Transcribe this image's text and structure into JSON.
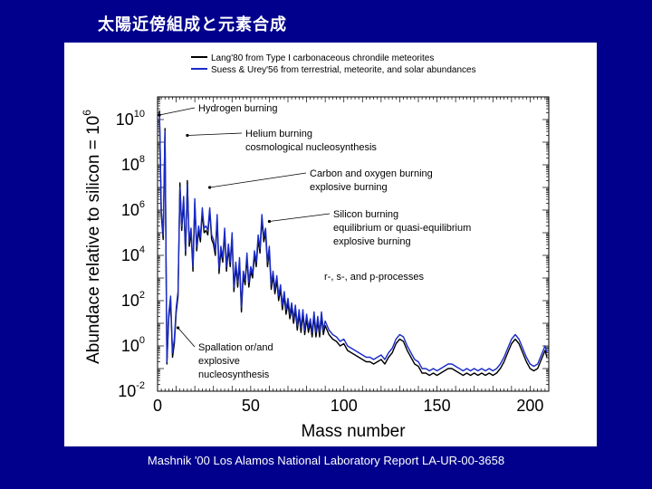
{
  "slide": {
    "title": "太陽近傍組成と元素合成",
    "footer": "Mashnik '00 Los Alamos National Laboratory Report LA-UR-00-3658",
    "background_color": "#00008c"
  },
  "chart_data": {
    "type": "line",
    "xlabel": "Mass number",
    "ylabel": "Abundace relative to silicon = 10",
    "ylabel_superscript": "6",
    "xlim": [
      0,
      210
    ],
    "ylim_log10": [
      -2,
      11
    ],
    "yscale": "log",
    "xticks": [
      {
        "value": 0,
        "label": "0"
      },
      {
        "value": 50,
        "label": "50"
      },
      {
        "value": 100,
        "label": "100"
      },
      {
        "value": 150,
        "label": "150"
      },
      {
        "value": 200,
        "label": "200"
      }
    ],
    "yticks": [
      {
        "value": -2,
        "base": "10",
        "exp": "-2"
      },
      {
        "value": 0,
        "base": "10",
        "exp": "0"
      },
      {
        "value": 2,
        "base": "10",
        "exp": "2"
      },
      {
        "value": 4,
        "base": "10",
        "exp": "4"
      },
      {
        "value": 6,
        "base": "10",
        "exp": "6"
      },
      {
        "value": 8,
        "base": "10",
        "exp": "8"
      },
      {
        "value": 10,
        "base": "10",
        "exp": "10"
      }
    ],
    "legend_position": "top",
    "series": [
      {
        "name": "Lang'80 from Type I carbonaceous chrondile meteorites",
        "color": "#000000",
        "points": [
          [
            1,
            10.4
          ],
          [
            2,
            5.8
          ],
          [
            3,
            4.7
          ],
          [
            4,
            9.6
          ],
          [
            5,
            -0.8
          ],
          [
            6,
            1.2
          ],
          [
            7,
            2.0
          ],
          [
            8,
            -0.5
          ],
          [
            9,
            0.1
          ],
          [
            10,
            1.5
          ],
          [
            11,
            2.2
          ],
          [
            12,
            7.2
          ],
          [
            13,
            5.1
          ],
          [
            14,
            6.4
          ],
          [
            15,
            4.0
          ],
          [
            16,
            7.3
          ],
          [
            17,
            4.4
          ],
          [
            18,
            5.0
          ],
          [
            19,
            3.3
          ],
          [
            20,
            6.3
          ],
          [
            21,
            4.2
          ],
          [
            22,
            5.1
          ],
          [
            23,
            4.6
          ],
          [
            24,
            5.9
          ],
          [
            25,
            5.0
          ],
          [
            26,
            5.1
          ],
          [
            27,
            4.9
          ],
          [
            28,
            6.0
          ],
          [
            29,
            4.7
          ],
          [
            30,
            4.5
          ],
          [
            31,
            4.0
          ],
          [
            32,
            5.6
          ],
          [
            33,
            3.2
          ],
          [
            34,
            4.2
          ],
          [
            35,
            3.7
          ],
          [
            36,
            5.0
          ],
          [
            37,
            3.3
          ],
          [
            38,
            4.3
          ],
          [
            39,
            3.5
          ],
          [
            40,
            4.8
          ],
          [
            41,
            2.4
          ],
          [
            42,
            3.5
          ],
          [
            43,
            2.6
          ],
          [
            44,
            3.7
          ],
          [
            45,
            1.5
          ],
          [
            46,
            3.1
          ],
          [
            47,
            2.7
          ],
          [
            48,
            3.9
          ],
          [
            49,
            2.6
          ],
          [
            50,
            3.3
          ],
          [
            51,
            3.0
          ],
          [
            52,
            4.0
          ],
          [
            53,
            3.5
          ],
          [
            54,
            4.7
          ],
          [
            55,
            4.1
          ],
          [
            56,
            5.6
          ],
          [
            57,
            4.6
          ],
          [
            58,
            5.0
          ],
          [
            59,
            3.5
          ],
          [
            60,
            4.2
          ],
          [
            61,
            2.5
          ],
          [
            62,
            3.1
          ],
          [
            63,
            2.3
          ],
          [
            64,
            2.9
          ],
          [
            65,
            2.0
          ],
          [
            66,
            2.5
          ],
          [
            67,
            1.6
          ],
          [
            68,
            2.2
          ],
          [
            69,
            1.4
          ],
          [
            70,
            1.9
          ],
          [
            71,
            1.2
          ],
          [
            72,
            1.7
          ],
          [
            73,
            1.0
          ],
          [
            74,
            1.6
          ],
          [
            75,
            0.7
          ],
          [
            76,
            1.4
          ],
          [
            77,
            0.6
          ],
          [
            78,
            1.4
          ],
          [
            79,
            0.5
          ],
          [
            80,
            1.2
          ],
          [
            81,
            0.6
          ],
          [
            82,
            1.0
          ],
          [
            83,
            0.4
          ],
          [
            84,
            1.3
          ],
          [
            85,
            0.4
          ],
          [
            86,
            1.1
          ],
          [
            87,
            0.4
          ],
          [
            88,
            1.3
          ],
          [
            89,
            0.5
          ],
          [
            90,
            0.9
          ],
          [
            92,
            0.5
          ],
          [
            94,
            0.3
          ],
          [
            96,
            0.2
          ],
          [
            98,
            0.0
          ],
          [
            100,
            0.1
          ],
          [
            102,
            -0.2
          ],
          [
            104,
            -0.3
          ],
          [
            106,
            -0.4
          ],
          [
            108,
            -0.5
          ],
          [
            110,
            -0.6
          ],
          [
            112,
            -0.7
          ],
          [
            114,
            -0.7
          ],
          [
            116,
            -0.8
          ],
          [
            118,
            -0.7
          ],
          [
            120,
            -0.6
          ],
          [
            122,
            -0.8
          ],
          [
            124,
            -0.5
          ],
          [
            126,
            -0.3
          ],
          [
            128,
            0.1
          ],
          [
            130,
            0.3
          ],
          [
            132,
            0.2
          ],
          [
            134,
            -0.2
          ],
          [
            136,
            -0.5
          ],
          [
            138,
            -0.8
          ],
          [
            140,
            -0.9
          ],
          [
            142,
            -1.2
          ],
          [
            144,
            -1.2
          ],
          [
            146,
            -1.3
          ],
          [
            148,
            -1.2
          ],
          [
            150,
            -1.3
          ],
          [
            152,
            -1.2
          ],
          [
            154,
            -1.1
          ],
          [
            156,
            -1.0
          ],
          [
            158,
            -1.0
          ],
          [
            160,
            -1.1
          ],
          [
            162,
            -1.2
          ],
          [
            164,
            -1.3
          ],
          [
            166,
            -1.2
          ],
          [
            168,
            -1.3
          ],
          [
            170,
            -1.2
          ],
          [
            172,
            -1.3
          ],
          [
            174,
            -1.2
          ],
          [
            176,
            -1.3
          ],
          [
            178,
            -1.2
          ],
          [
            180,
            -1.3
          ],
          [
            182,
            -1.2
          ],
          [
            184,
            -1.0
          ],
          [
            186,
            -0.7
          ],
          [
            188,
            -0.3
          ],
          [
            190,
            0.1
          ],
          [
            192,
            0.3
          ],
          [
            194,
            0.1
          ],
          [
            196,
            -0.3
          ],
          [
            198,
            -0.7
          ],
          [
            200,
            -1.0
          ],
          [
            202,
            -1.1
          ],
          [
            204,
            -1.0
          ],
          [
            206,
            -0.6
          ],
          [
            208,
            -0.2
          ],
          [
            209,
            -0.5
          ]
        ]
      },
      {
        "name": "Suess & Urey'56 from terrestrial, meteorite, and solar abundances",
        "color": "#1a2bc8",
        "points": [
          [
            1,
            10.3
          ],
          [
            2,
            6.0
          ],
          [
            3,
            4.9
          ],
          [
            4,
            9.5
          ],
          [
            5,
            -0.7
          ],
          [
            6,
            1.4
          ],
          [
            7,
            2.2
          ],
          [
            8,
            -0.3
          ],
          [
            9,
            0.3
          ],
          [
            10,
            1.7
          ],
          [
            11,
            2.4
          ],
          [
            12,
            7.0
          ],
          [
            13,
            5.3
          ],
          [
            14,
            6.6
          ],
          [
            15,
            4.2
          ],
          [
            16,
            7.1
          ],
          [
            17,
            4.6
          ],
          [
            18,
            5.2
          ],
          [
            19,
            3.5
          ],
          [
            20,
            6.5
          ],
          [
            21,
            4.4
          ],
          [
            22,
            5.3
          ],
          [
            23,
            4.8
          ],
          [
            24,
            6.1
          ],
          [
            25,
            5.2
          ],
          [
            26,
            5.3
          ],
          [
            27,
            5.1
          ],
          [
            28,
            6.1
          ],
          [
            29,
            4.9
          ],
          [
            30,
            4.7
          ],
          [
            31,
            4.2
          ],
          [
            32,
            5.8
          ],
          [
            33,
            3.4
          ],
          [
            34,
            4.4
          ],
          [
            35,
            3.9
          ],
          [
            36,
            5.2
          ],
          [
            37,
            3.5
          ],
          [
            38,
            4.5
          ],
          [
            39,
            3.7
          ],
          [
            40,
            5.0
          ],
          [
            41,
            2.6
          ],
          [
            42,
            3.7
          ],
          [
            43,
            2.8
          ],
          [
            44,
            3.9
          ],
          [
            45,
            1.7
          ],
          [
            46,
            3.3
          ],
          [
            47,
            2.9
          ],
          [
            48,
            4.1
          ],
          [
            49,
            2.8
          ],
          [
            50,
            3.5
          ],
          [
            51,
            3.2
          ],
          [
            52,
            4.2
          ],
          [
            53,
            3.7
          ],
          [
            54,
            4.9
          ],
          [
            55,
            4.3
          ],
          [
            56,
            5.8
          ],
          [
            57,
            4.8
          ],
          [
            58,
            5.2
          ],
          [
            59,
            3.7
          ],
          [
            60,
            4.4
          ],
          [
            61,
            2.7
          ],
          [
            62,
            3.3
          ],
          [
            63,
            2.5
          ],
          [
            64,
            3.1
          ],
          [
            65,
            2.2
          ],
          [
            66,
            2.7
          ],
          [
            67,
            1.8
          ],
          [
            68,
            2.4
          ],
          [
            69,
            1.6
          ],
          [
            70,
            2.1
          ],
          [
            71,
            1.4
          ],
          [
            72,
            1.9
          ],
          [
            73,
            1.2
          ],
          [
            74,
            1.8
          ],
          [
            75,
            0.9
          ],
          [
            76,
            1.6
          ],
          [
            77,
            0.8
          ],
          [
            78,
            1.6
          ],
          [
            79,
            0.7
          ],
          [
            80,
            1.4
          ],
          [
            81,
            0.8
          ],
          [
            82,
            1.2
          ],
          [
            83,
            0.6
          ],
          [
            84,
            1.5
          ],
          [
            85,
            0.6
          ],
          [
            86,
            1.3
          ],
          [
            87,
            0.6
          ],
          [
            88,
            1.5
          ],
          [
            89,
            0.7
          ],
          [
            90,
            1.1
          ],
          [
            92,
            0.7
          ],
          [
            94,
            0.5
          ],
          [
            96,
            0.4
          ],
          [
            98,
            0.2
          ],
          [
            100,
            0.3
          ],
          [
            102,
            0.0
          ],
          [
            104,
            -0.1
          ],
          [
            106,
            -0.2
          ],
          [
            108,
            -0.3
          ],
          [
            110,
            -0.4
          ],
          [
            112,
            -0.5
          ],
          [
            114,
            -0.5
          ],
          [
            116,
            -0.6
          ],
          [
            118,
            -0.5
          ],
          [
            120,
            -0.4
          ],
          [
            122,
            -0.6
          ],
          [
            124,
            -0.3
          ],
          [
            126,
            -0.1
          ],
          [
            128,
            0.3
          ],
          [
            130,
            0.5
          ],
          [
            132,
            0.4
          ],
          [
            134,
            0.0
          ],
          [
            136,
            -0.3
          ],
          [
            138,
            -0.6
          ],
          [
            140,
            -0.7
          ],
          [
            142,
            -1.0
          ],
          [
            144,
            -1.0
          ],
          [
            146,
            -1.1
          ],
          [
            148,
            -1.0
          ],
          [
            150,
            -1.1
          ],
          [
            152,
            -1.0
          ],
          [
            154,
            -0.9
          ],
          [
            156,
            -0.8
          ],
          [
            158,
            -0.8
          ],
          [
            160,
            -0.9
          ],
          [
            162,
            -1.0
          ],
          [
            164,
            -1.1
          ],
          [
            166,
            -1.0
          ],
          [
            168,
            -1.1
          ],
          [
            170,
            -1.0
          ],
          [
            172,
            -1.1
          ],
          [
            174,
            -1.0
          ],
          [
            176,
            -1.1
          ],
          [
            178,
            -1.0
          ],
          [
            180,
            -1.1
          ],
          [
            182,
            -1.0
          ],
          [
            184,
            -0.8
          ],
          [
            186,
            -0.5
          ],
          [
            188,
            -0.1
          ],
          [
            190,
            0.3
          ],
          [
            192,
            0.5
          ],
          [
            194,
            0.3
          ],
          [
            196,
            -0.1
          ],
          [
            198,
            -0.5
          ],
          [
            200,
            -0.8
          ],
          [
            202,
            -0.9
          ],
          [
            204,
            -0.8
          ],
          [
            206,
            -0.4
          ],
          [
            208,
            0.0
          ],
          [
            209,
            -0.3
          ]
        ]
      }
    ],
    "annotations": [
      {
        "lines": [
          "Hydrogen burning"
        ],
        "x": 1,
        "y": 10.2
      },
      {
        "lines": [
          "Helium burning",
          "cosmological nucleosynthesis"
        ],
        "x": 16,
        "y": 9.3
      },
      {
        "lines": [
          "Carbon and oxygen burning",
          "explosive burning"
        ],
        "x": 28,
        "y": 7.0
      },
      {
        "lines": [
          "Silicon burning",
          "equilibrium or quasi-equilibrium",
          "explosive burning"
        ],
        "x": 60,
        "y": 5.5
      },
      {
        "lines": [
          "r-, s-, and p-processes"
        ],
        "x": null,
        "y": null
      },
      {
        "lines": [
          "Spallation or/and",
          "explosive",
          "nucleosynthesis"
        ],
        "x": 11,
        "y": 0.8
      }
    ]
  }
}
